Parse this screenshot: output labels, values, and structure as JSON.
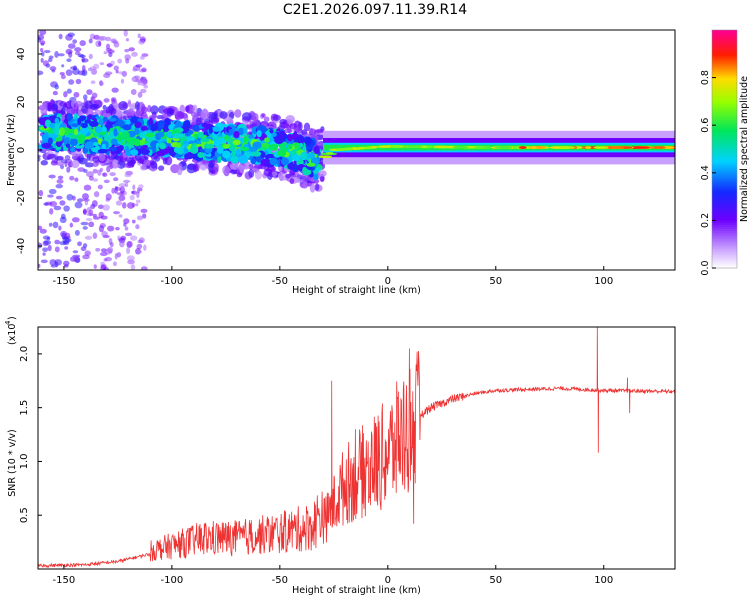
{
  "title": "C2E1.2026.097.11.39.R14",
  "colors": {
    "snr_line": "#ee3333",
    "axis": "#000000"
  },
  "chart_data": [
    {
      "type": "heatmap",
      "name": "spectrogram",
      "xlabel": "Height of straight line (km)",
      "ylabel": "Frequency (Hz)",
      "xlim": [
        -162,
        133
      ],
      "ylim": [
        -50,
        50
      ],
      "xticks": [
        -150,
        -100,
        -50,
        0,
        50,
        100
      ],
      "yticks": [
        -40,
        -20,
        0,
        20,
        40
      ],
      "colorbar": {
        "label": "Normalized spectral amplitude",
        "range": [
          0.0,
          1.0
        ],
        "ticks": [
          "0.0",
          "0.2",
          "0.4",
          "0.6",
          "0.8"
        ],
        "tick_values": [
          0.0,
          0.2,
          0.4,
          0.6,
          0.8
        ],
        "colormap": "rainbow (white-violet-blue-cyan-green-yellow-red-magenta)"
      },
      "center_frequency_trace": [
        {
          "x": -150,
          "y": 7
        },
        {
          "x": -120,
          "y": 6
        },
        {
          "x": -90,
          "y": 4
        },
        {
          "x": -60,
          "y": 2
        },
        {
          "x": -40,
          "y": -1
        },
        {
          "x": -32,
          "y": -5
        },
        {
          "x": -25,
          "y": 0
        },
        {
          "x": 0,
          "y": 1.5
        },
        {
          "x": 50,
          "y": 1
        },
        {
          "x": 133,
          "y": 1
        }
      ]
    },
    {
      "type": "line",
      "name": "snr",
      "xlabel": "Height of straight line (km)",
      "ylabel": "SNR (10 * v/v)",
      "scale_label": "(x10",
      "scale_exponent": "4",
      "xlim": [
        -162,
        133
      ],
      "ylim": [
        0.0,
        2.25
      ],
      "xticks": [
        -150,
        -100,
        -50,
        0,
        50,
        100
      ],
      "yticks": [
        0.5,
        1.0,
        1.5,
        2.0
      ],
      "ytick_labels": [
        "0.5",
        "1.0",
        "1.5",
        "2.0"
      ],
      "series": [
        {
          "name": "SNR",
          "envelope": [
            {
              "x": -162,
              "y": 0.03
            },
            {
              "x": -140,
              "y": 0.04
            },
            {
              "x": -125,
              "y": 0.07
            },
            {
              "x": -110,
              "y": 0.14
            },
            {
              "x": -100,
              "y": 0.18
            },
            {
              "x": -85,
              "y": 0.24
            },
            {
              "x": -70,
              "y": 0.24
            },
            {
              "x": -50,
              "y": 0.28
            },
            {
              "x": -35,
              "y": 0.33
            },
            {
              "x": -28,
              "y": 0.5
            },
            {
              "x": -20,
              "y": 0.8
            },
            {
              "x": -10,
              "y": 0.95
            },
            {
              "x": 0,
              "y": 1.1
            },
            {
              "x": 10,
              "y": 1.35
            },
            {
              "x": 20,
              "y": 1.5
            },
            {
              "x": 30,
              "y": 1.58
            },
            {
              "x": 40,
              "y": 1.63
            },
            {
              "x": 50,
              "y": 1.66
            },
            {
              "x": 80,
              "y": 1.68
            },
            {
              "x": 100,
              "y": 1.66
            },
            {
              "x": 133,
              "y": 1.65
            }
          ],
          "spikes": [
            {
              "x": -26,
              "y": 1.75
            },
            {
              "x": -15,
              "y": 1.3
            },
            {
              "x": 5,
              "y": 1.65
            },
            {
              "x": 10,
              "y": 2.05
            },
            {
              "x": 12,
              "y": 0.42
            },
            {
              "x": 97,
              "y": 2.25
            },
            {
              "x": 97.5,
              "y": 1.08
            },
            {
              "x": 111,
              "y": 1.78
            },
            {
              "x": 112,
              "y": 1.45
            }
          ]
        }
      ]
    }
  ]
}
